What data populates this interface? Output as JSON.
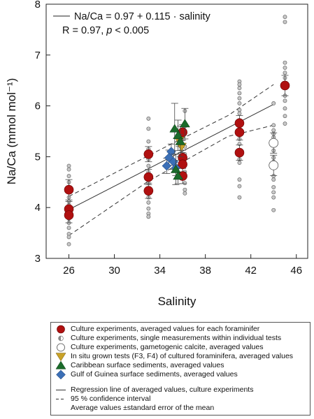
{
  "chart_data": {
    "type": "scatter",
    "xlabel": "Salinity",
    "ylabel": "Na/Ca (mmol mol⁻¹)",
    "xlim": [
      24,
      47
    ],
    "ylim": [
      3,
      8
    ],
    "xticks": [
      26,
      30,
      34,
      38,
      42,
      46
    ],
    "yticks": [
      3,
      4,
      5,
      6,
      7,
      8
    ],
    "grid": false,
    "annotation": {
      "equation": "Na/Ca = 0.97 + 0.115 · salinity",
      "stats_prefix": "R = 0.97, ",
      "stats_italic": "p",
      "stats_suffix": " < 0.005"
    },
    "regression": {
      "intercept": 0.97,
      "slope": 0.115,
      "x_range": [
        26,
        44
      ],
      "style": "solid"
    },
    "confidence_interval": {
      "style": "dashed",
      "upper": [
        [
          26,
          4.22
        ],
        [
          35,
          5.25
        ],
        [
          40,
          5.81
        ],
        [
          44,
          6.42
        ]
      ],
      "lower": [
        [
          26,
          3.45
        ],
        [
          33,
          4.52
        ],
        [
          40,
          5.4
        ],
        [
          44,
          5.62
        ]
      ]
    },
    "series": [
      {
        "name": "Culture experiments, averaged values for each foraminifer",
        "marker": "circle",
        "color": "#b01010",
        "points": [
          {
            "x": 26,
            "y": 4.35,
            "err": 0.2
          },
          {
            "x": 26,
            "y": 3.97,
            "err": 0.15
          },
          {
            "x": 26,
            "y": 3.85,
            "err": 0.15
          },
          {
            "x": 33,
            "y": 5.05,
            "err": 0.15
          },
          {
            "x": 33,
            "y": 4.6,
            "err": 0.15
          },
          {
            "x": 33,
            "y": 4.33,
            "err": 0.15
          },
          {
            "x": 36,
            "y": 5.48,
            "err": 0.15
          },
          {
            "x": 36,
            "y": 4.98,
            "err": 0.15
          },
          {
            "x": 36,
            "y": 4.85,
            "err": 0.15
          },
          {
            "x": 36,
            "y": 4.62,
            "err": 0.15
          },
          {
            "x": 41,
            "y": 5.66,
            "err": 0.15
          },
          {
            "x": 41,
            "y": 5.48,
            "err": 0.15
          },
          {
            "x": 41,
            "y": 5.08,
            "err": 0.15
          },
          {
            "x": 45,
            "y": 6.4,
            "err": 0.2
          }
        ]
      },
      {
        "name": "Culture experiments, single measurements within individual tests",
        "marker": "small-circle",
        "color": "#aaaaaa",
        "points": [
          {
            "x": 26,
            "y": 4.82
          },
          {
            "x": 26,
            "y": 4.75
          },
          {
            "x": 26,
            "y": 4.62
          },
          {
            "x": 26,
            "y": 4.5
          },
          {
            "x": 26,
            "y": 4.2
          },
          {
            "x": 26,
            "y": 4.12
          },
          {
            "x": 26,
            "y": 4.05
          },
          {
            "x": 26,
            "y": 3.78
          },
          {
            "x": 26,
            "y": 3.7
          },
          {
            "x": 26,
            "y": 3.6
          },
          {
            "x": 26,
            "y": 3.48
          },
          {
            "x": 26,
            "y": 3.42
          },
          {
            "x": 26,
            "y": 3.28
          },
          {
            "x": 33,
            "y": 5.75
          },
          {
            "x": 33,
            "y": 5.55
          },
          {
            "x": 33,
            "y": 5.3
          },
          {
            "x": 33,
            "y": 5.15
          },
          {
            "x": 33,
            "y": 4.95
          },
          {
            "x": 33,
            "y": 4.82
          },
          {
            "x": 33,
            "y": 4.7
          },
          {
            "x": 33,
            "y": 4.48
          },
          {
            "x": 33,
            "y": 4.2
          },
          {
            "x": 33,
            "y": 4.1
          },
          {
            "x": 33,
            "y": 3.98
          },
          {
            "x": 33,
            "y": 3.88
          },
          {
            "x": 33,
            "y": 3.82
          },
          {
            "x": 36.2,
            "y": 5.9
          },
          {
            "x": 36.2,
            "y": 5.6
          },
          {
            "x": 36.2,
            "y": 5.2
          },
          {
            "x": 36.2,
            "y": 5.05
          },
          {
            "x": 36.2,
            "y": 4.7
          },
          {
            "x": 36.2,
            "y": 4.48
          },
          {
            "x": 36.2,
            "y": 4.35
          },
          {
            "x": 36.2,
            "y": 4.28
          },
          {
            "x": 41,
            "y": 6.48
          },
          {
            "x": 41,
            "y": 6.42
          },
          {
            "x": 41,
            "y": 6.35
          },
          {
            "x": 41,
            "y": 6.25
          },
          {
            "x": 41,
            "y": 6.15
          },
          {
            "x": 41,
            "y": 6.05
          },
          {
            "x": 41,
            "y": 5.92
          },
          {
            "x": 41,
            "y": 5.85
          },
          {
            "x": 41,
            "y": 5.72
          },
          {
            "x": 41,
            "y": 5.35
          },
          {
            "x": 41,
            "y": 5.25
          },
          {
            "x": 41,
            "y": 4.95
          },
          {
            "x": 41,
            "y": 4.88
          },
          {
            "x": 41,
            "y": 4.55
          },
          {
            "x": 41,
            "y": 4.42
          },
          {
            "x": 41,
            "y": 4.2
          },
          {
            "x": 44,
            "y": 6.05
          },
          {
            "x": 44,
            "y": 5.62
          },
          {
            "x": 44,
            "y": 5.52
          },
          {
            "x": 44,
            "y": 5.45
          },
          {
            "x": 44,
            "y": 5.38
          },
          {
            "x": 44,
            "y": 5.12
          },
          {
            "x": 44,
            "y": 4.98
          },
          {
            "x": 44,
            "y": 4.9
          },
          {
            "x": 44,
            "y": 4.62
          },
          {
            "x": 44,
            "y": 4.55
          },
          {
            "x": 44,
            "y": 4.4
          },
          {
            "x": 44,
            "y": 4.3
          },
          {
            "x": 44,
            "y": 4.2
          },
          {
            "x": 44,
            "y": 3.95
          },
          {
            "x": 45,
            "y": 7.75
          },
          {
            "x": 45,
            "y": 7.65
          },
          {
            "x": 45,
            "y": 6.85
          },
          {
            "x": 45,
            "y": 6.75
          },
          {
            "x": 45,
            "y": 6.65
          },
          {
            "x": 45,
            "y": 6.55
          },
          {
            "x": 45,
            "y": 6.2
          },
          {
            "x": 45,
            "y": 6.1
          },
          {
            "x": 45,
            "y": 5.95
          },
          {
            "x": 45,
            "y": 5.8
          },
          {
            "x": 45,
            "y": 5.65
          }
        ]
      },
      {
        "name": "Culture experiments, gametogenic calcite, averaged values",
        "marker": "open-circle",
        "color": "#ffffff",
        "points": [
          {
            "x": 44,
            "y": 5.27,
            "err": 0.2
          },
          {
            "x": 44,
            "y": 4.83,
            "err": 0.2
          }
        ]
      },
      {
        "name": "In situ grown tests (F3, F4) of cultured foraminifera, averaged values",
        "marker": "triangle-down",
        "color": "#c9a227",
        "points": [
          {
            "x": 35.7,
            "y": 5.32,
            "err": 0.12
          },
          {
            "x": 35.9,
            "y": 5.2,
            "err": 0.12
          }
        ]
      },
      {
        "name": "Caribbean surface sediments, averaged values",
        "marker": "triangle-up",
        "color": "#1a6b2a",
        "points": [
          {
            "x": 35.3,
            "y": 5.55,
            "err": 0.5
          },
          {
            "x": 36.2,
            "y": 5.65,
            "err": 0.3
          },
          {
            "x": 35.6,
            "y": 5.42,
            "err": 0.3
          },
          {
            "x": 35.8,
            "y": 5.3,
            "err": 0.3
          },
          {
            "x": 35.4,
            "y": 4.75,
            "err": 0.3
          },
          {
            "x": 35.6,
            "y": 4.62,
            "err": 0.15
          }
        ]
      },
      {
        "name": "Gulf of Guinea surface sediments, averaged values",
        "marker": "diamond",
        "color": "#3b6fb6",
        "points": [
          {
            "x": 35.0,
            "y": 5.1,
            "err": 0.15
          },
          {
            "x": 34.8,
            "y": 4.98,
            "err": 0.15
          },
          {
            "x": 35.2,
            "y": 4.9,
            "err": 0.15
          },
          {
            "x": 34.6,
            "y": 4.82,
            "err": 0.15
          },
          {
            "x": 35.4,
            "y": 4.78,
            "err": 0.15
          }
        ]
      }
    ]
  },
  "legend": {
    "items": [
      {
        "marker": "circle",
        "color": "#b01010",
        "label": "Culture experiments, averaged values for each foraminifer"
      },
      {
        "marker": "half-circle",
        "color": "#aaaaaa",
        "label": "Culture experiments, single measurements within individual tests"
      },
      {
        "marker": "open-circle",
        "color": "#ffffff",
        "label": "Culture experiments, gametogenic calcite, averaged values"
      },
      {
        "marker": "triangle-down",
        "color": "#c9a227",
        "label": "In situ grown tests (F3, F4) of cultured foraminifera, averaged values"
      },
      {
        "marker": "triangle-up",
        "color": "#1a6b2a",
        "label": "Caribbean surface sediments, averaged values"
      },
      {
        "marker": "diamond",
        "color": "#3b6fb6",
        "label": "Gulf of Guinea surface sediments, averaged values"
      },
      {
        "marker": "solid-line",
        "color": "#333333",
        "label": "Regression line of averaged values, culture experiments"
      },
      {
        "marker": "dashed-line",
        "color": "#333333",
        "label": "95 % confidence interval"
      },
      {
        "marker": "none",
        "color": "#333333",
        "label": "Average values ±standard error of the mean"
      }
    ]
  }
}
